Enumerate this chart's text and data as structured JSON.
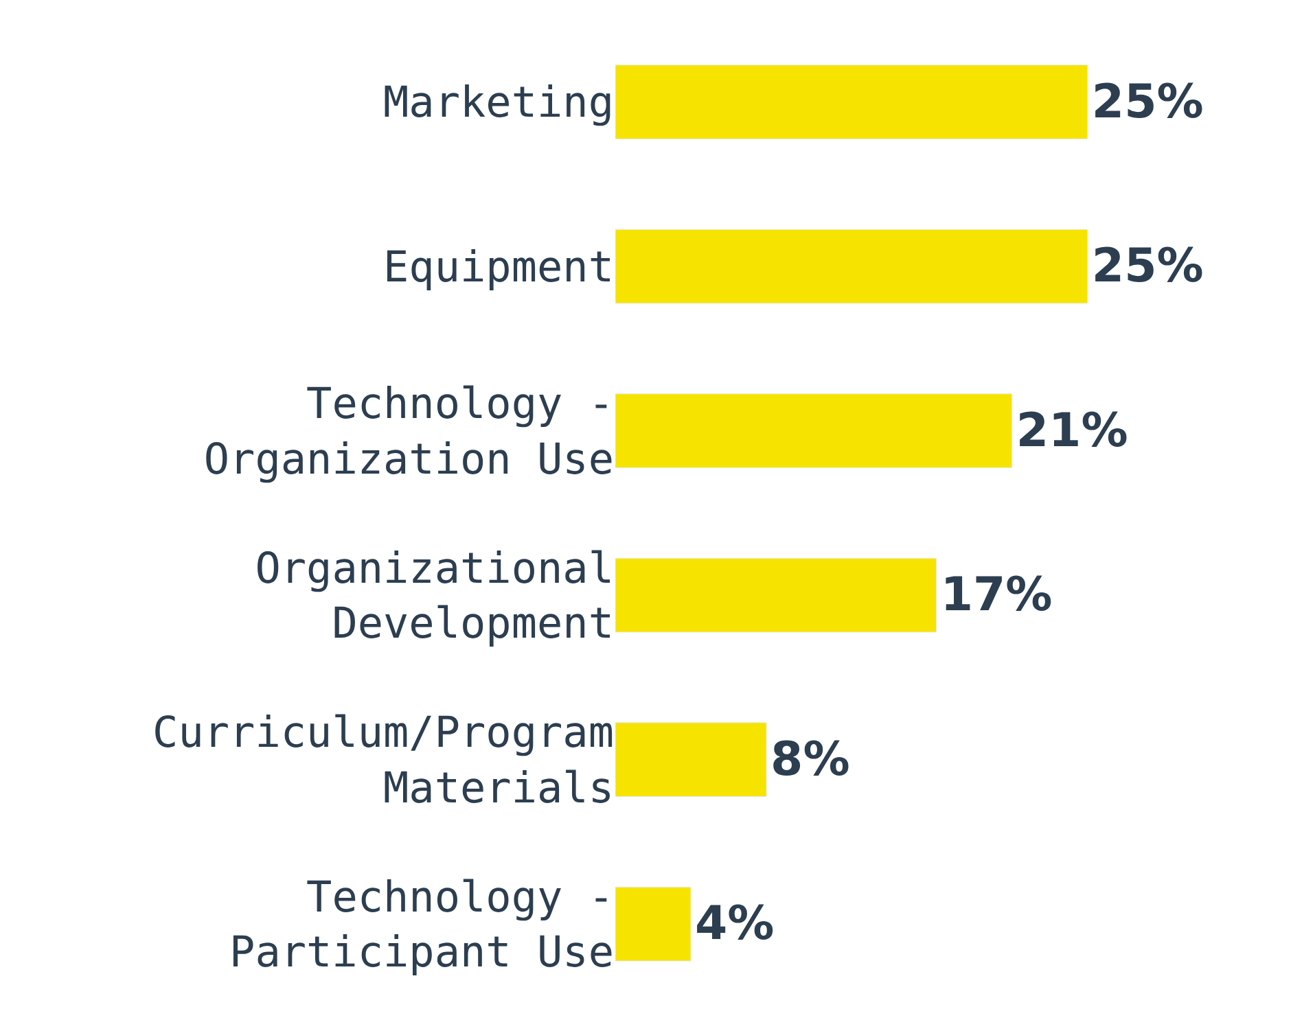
{
  "chart_data": {
    "type": "bar",
    "orientation": "horizontal",
    "categories": [
      "Marketing",
      "Equipment",
      "Technology -\nOrganization Use",
      "Organizational\nDevelopment",
      "Curriculum/Program\nMaterials",
      "Technology -\nParticipant Use"
    ],
    "values": [
      25,
      25,
      21,
      17,
      8,
      4
    ],
    "value_labels": [
      "25%",
      "25%",
      "21%",
      "17%",
      "8%",
      "4%"
    ],
    "color": "#f7e300",
    "tick_labels": "y"
  }
}
